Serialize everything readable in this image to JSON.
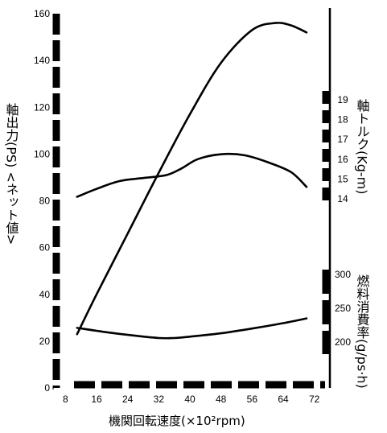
{
  "chart_data": {
    "type": "line",
    "xlabel": "機関回転速度(×10²rpm)",
    "x_ticks": [
      "8",
      "16",
      "24",
      "32",
      "40",
      "48",
      "56",
      "64",
      "72"
    ],
    "xlim": [
      4,
      76
    ],
    "left_axis": {
      "label": "軸出力(PS) <ネット値>",
      "ticks": [
        "0",
        "20",
        "40",
        "60",
        "80",
        "100",
        "120",
        "140",
        "160"
      ],
      "ylim": [
        0,
        160
      ]
    },
    "right_axis_torque": {
      "label": "軸トルク(Kg-m)",
      "ticks": [
        "14",
        "15",
        "16",
        "17",
        "18",
        "19"
      ],
      "range": [
        14,
        19
      ]
    },
    "right_axis_fuel": {
      "label": "燃料消費率(g/ps·h)",
      "ticks": [
        "200",
        "250",
        "300"
      ],
      "range": [
        200,
        300
      ]
    },
    "series": [
      {
        "axis": "left",
        "x": [
          11,
          16,
          24,
          32,
          40,
          48,
          56,
          62,
          66,
          70
        ],
        "y": [
          23,
          40,
          66,
          92,
          117,
          139,
          153,
          156,
          155,
          152
        ]
      },
      {
        "axis": "torque",
        "x": [
          11,
          16,
          22,
          28,
          34,
          38,
          42,
          48,
          54,
          60,
          66,
          70
        ],
        "y": [
          14.1,
          14.5,
          14.9,
          15.05,
          15.2,
          15.55,
          16.0,
          16.25,
          16.2,
          15.85,
          15.35,
          14.6
        ]
      },
      {
        "axis": "fuel",
        "x": [
          11,
          18,
          25,
          32,
          36,
          40,
          48,
          56,
          64,
          70
        ],
        "y": [
          221,
          215,
          210,
          206,
          206,
          208,
          213,
          220,
          228,
          235
        ]
      }
    ]
  }
}
